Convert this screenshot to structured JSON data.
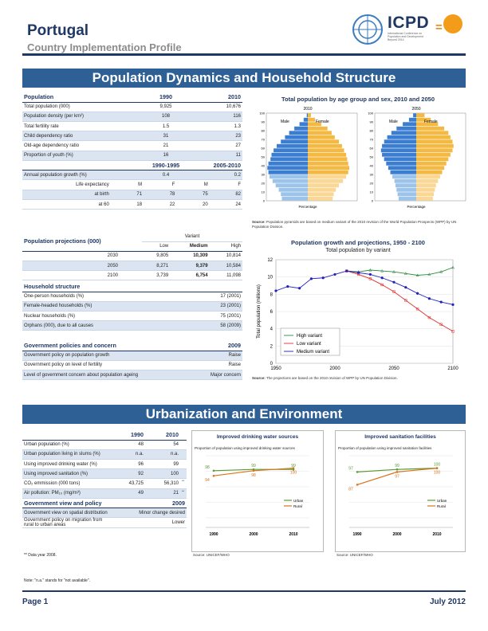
{
  "header": {
    "country": "Portugal",
    "subtitle": "Country Implementation Profile",
    "logo_text": "ICPD",
    "logo_subtext": "International Conference on Population and Development Beyond 2014"
  },
  "section1": {
    "title": "Population Dynamics and Household Structure"
  },
  "section2": {
    "title": "Urbanization and Environment"
  },
  "pop_table": {
    "head": [
      "Population",
      "1990",
      "2010"
    ],
    "rows": [
      [
        "Total population (000)",
        "9,925",
        "10,676"
      ],
      [
        "Population density (per km²)",
        "108",
        "116"
      ],
      [
        "Total fertility rate",
        "1.5",
        "1.3"
      ],
      [
        "Child dependency ratio",
        "31",
        "23"
      ],
      [
        "Old-age dependency ratio",
        "21",
        "27"
      ],
      [
        "Proportion of youth (%)",
        "16",
        "11"
      ]
    ],
    "head2": [
      "",
      "1990-1995",
      "2005-2010"
    ],
    "rows2": [
      [
        "Annual population growth (%)",
        "0.4",
        "0.2"
      ]
    ],
    "le_label": "Life expectancy",
    "le_cols": [
      "M",
      "F",
      "M",
      "F"
    ],
    "le_rows": [
      [
        "at birth",
        "71",
        "78",
        "75",
        "82"
      ],
      [
        "at 60",
        "18",
        "22",
        "20",
        "24"
      ]
    ]
  },
  "proj_table": {
    "title": "Population projections (000)",
    "variant_label": "Variant",
    "cols": [
      "Low",
      "Medium",
      "High"
    ],
    "rows": [
      [
        "2030",
        "9,805",
        "10,309",
        "10,814"
      ],
      [
        "2050",
        "8,271",
        "9,379",
        "10,584"
      ],
      [
        "2100",
        "3,739",
        "6,754",
        "11,098"
      ]
    ]
  },
  "household": {
    "title": "Household structure",
    "rows": [
      [
        "One-person households (%)",
        "17 (2001)"
      ],
      [
        "Female-headed households (%)",
        "23 (2001)"
      ],
      [
        "Nuclear households (%)",
        "75 (2001)"
      ],
      [
        "Orphans (000), due to all causes",
        "58 (2009)"
      ]
    ]
  },
  "policies": {
    "title": "Government policies and concern",
    "year": "2009",
    "rows": [
      [
        "Government policy on population growth",
        "Raise"
      ],
      [
        "Government policy on level of fertility",
        "Raise"
      ],
      [
        "Level of government concern about population ageing",
        "Major concern"
      ]
    ]
  },
  "pyramid": {
    "title": "Total population by age group and sex, 2010 and 2050",
    "years": [
      "2010",
      "2050"
    ],
    "male": "Male",
    "female": "Female",
    "xlabel": "Percentage",
    "ages": [
      "0",
      "10",
      "20",
      "30",
      "40",
      "50",
      "60",
      "70",
      "80",
      "90",
      "100"
    ],
    "m2010": [
      2.5,
      2.6,
      2.8,
      3.1,
      3.4,
      3.7,
      3.8,
      3.9,
      3.8,
      3.6,
      3.5,
      3.3,
      3.0,
      2.6,
      2.2,
      1.8,
      1.3,
      0.8,
      0.4,
      0.1
    ],
    "f2010": [
      2.4,
      2.5,
      2.7,
      3.0,
      3.4,
      3.7,
      3.9,
      4.0,
      3.9,
      3.8,
      3.7,
      3.5,
      3.3,
      3.0,
      2.6,
      2.3,
      1.9,
      1.3,
      0.7,
      0.3
    ],
    "m2050": [
      1.7,
      1.8,
      1.9,
      2.0,
      2.1,
      2.3,
      2.5,
      2.7,
      2.9,
      3.1,
      3.3,
      3.4,
      3.3,
      3.1,
      2.8,
      2.4,
      1.9,
      1.3,
      0.7,
      0.3
    ],
    "f2050": [
      1.6,
      1.7,
      1.8,
      1.9,
      2.1,
      2.3,
      2.5,
      2.7,
      2.9,
      3.1,
      3.3,
      3.5,
      3.6,
      3.5,
      3.3,
      3.1,
      2.7,
      2.1,
      1.4,
      0.8
    ],
    "source": "Population pyramids are based on medium variant of the 2010 revision of the World Population Prospects (WPP) by UN Population Division.",
    "source_label": "Source:"
  },
  "chart_data": [
    {
      "type": "line",
      "title": "Population growth and projections, 1950 - 2100",
      "subtitle": "Total population by variant",
      "ylabel": "Total population (millions)",
      "ylim": [
        0,
        12
      ],
      "xlim": [
        1950,
        2100
      ],
      "yticks": [
        "0",
        "2",
        "4",
        "6",
        "8",
        "10",
        "12"
      ],
      "xticks": [
        "1950",
        "2000",
        "2050",
        "2100"
      ],
      "series": [
        {
          "name": "High variant",
          "x": [
            2010,
            2020,
            2030,
            2040,
            2050,
            2060,
            2070,
            2080,
            2090,
            2100
          ],
          "values": [
            10.7,
            10.6,
            10.8,
            10.7,
            10.6,
            10.4,
            10.2,
            10.3,
            10.6,
            11.1
          ]
        },
        {
          "name": "Low variant",
          "x": [
            2010,
            2020,
            2030,
            2040,
            2050,
            2060,
            2070,
            2080,
            2090,
            2100
          ],
          "values": [
            10.7,
            10.3,
            9.8,
            9.1,
            8.3,
            7.3,
            6.3,
            5.3,
            4.5,
            3.7
          ]
        },
        {
          "name": "Medium variant",
          "x": [
            1950,
            1960,
            1970,
            1980,
            1990,
            2000,
            2010,
            2020,
            2030,
            2040,
            2050,
            2060,
            2070,
            2080,
            2090,
            2100
          ],
          "values": [
            8.4,
            8.9,
            8.7,
            9.8,
            9.9,
            10.3,
            10.7,
            10.5,
            10.3,
            9.9,
            9.4,
            8.8,
            8.1,
            7.5,
            7.1,
            6.8
          ]
        }
      ],
      "source": "The projections are based on the 2010 revision of WPP by UN Population Division.",
      "source_label": "Source:"
    },
    {
      "type": "line",
      "title": "Improved drinking water sources",
      "subtitle": "Proportion of population using improved drinking water sources",
      "xticks": [
        "1990",
        "2000",
        "2010"
      ],
      "series": [
        {
          "name": "Urban",
          "x": [
            1990,
            2000,
            2010
          ],
          "values": [
            98,
            99,
            99
          ]
        },
        {
          "name": "Rural",
          "x": [
            1990,
            2000,
            2010
          ],
          "values": [
            94,
            98,
            100
          ]
        }
      ],
      "source": "Source: UNICEF/WHO"
    },
    {
      "type": "line",
      "title": "Improved sanitation facilities",
      "subtitle": "Proportion of population using improved sanitation facilities",
      "xticks": [
        "1990",
        "2000",
        "2010"
      ],
      "series": [
        {
          "name": "Urban",
          "x": [
            1990,
            2000,
            2010
          ],
          "values": [
            97,
            99,
            100
          ]
        },
        {
          "name": "Rural",
          "x": [
            1990,
            2000,
            2010
          ],
          "values": [
            87,
            97,
            100
          ]
        }
      ],
      "source": "Source: UNICEF/WHO"
    }
  ],
  "urban_table": {
    "head": [
      "",
      "1990",
      "2010"
    ],
    "rows": [
      [
        "Urban population (%)",
        "48",
        "54",
        ""
      ],
      [
        "Urban population living in slums (%)",
        "n.a.",
        "n.a.",
        ""
      ],
      [
        "Using improved drinking water (%)",
        "96",
        "99",
        ""
      ],
      [
        "Using improved sanitation (%)",
        "92",
        "100",
        ""
      ],
      [
        "CO₂ emmission (000 tons)",
        "43,725",
        "56,310",
        "**"
      ],
      [
        "Air pollution: PM₁₀ (mg/m³)",
        "49",
        "21",
        "**"
      ]
    ],
    "view_title": "Government view and policy",
    "view_year": "2009",
    "view_rows": [
      [
        "Government view on spatial distribution",
        "Minor change desired"
      ],
      [
        "Government policy on migration from rural to urban areas",
        "Lower"
      ]
    ],
    "footnote": "** Data year 2008."
  },
  "note": "Note: \"n.a.\" stands for \"not available\".",
  "footer": {
    "page": "Page 1",
    "date": "July 2012"
  },
  "colors": {
    "navy": "#1f3864",
    "band": "#2e5f95",
    "male": "#3a7dd1",
    "female": "#f4b942",
    "urban": "#5b9a32",
    "rural": "#d9731c",
    "high": "#2e8b3e",
    "low": "#e03030",
    "medium": "#2020c0"
  }
}
